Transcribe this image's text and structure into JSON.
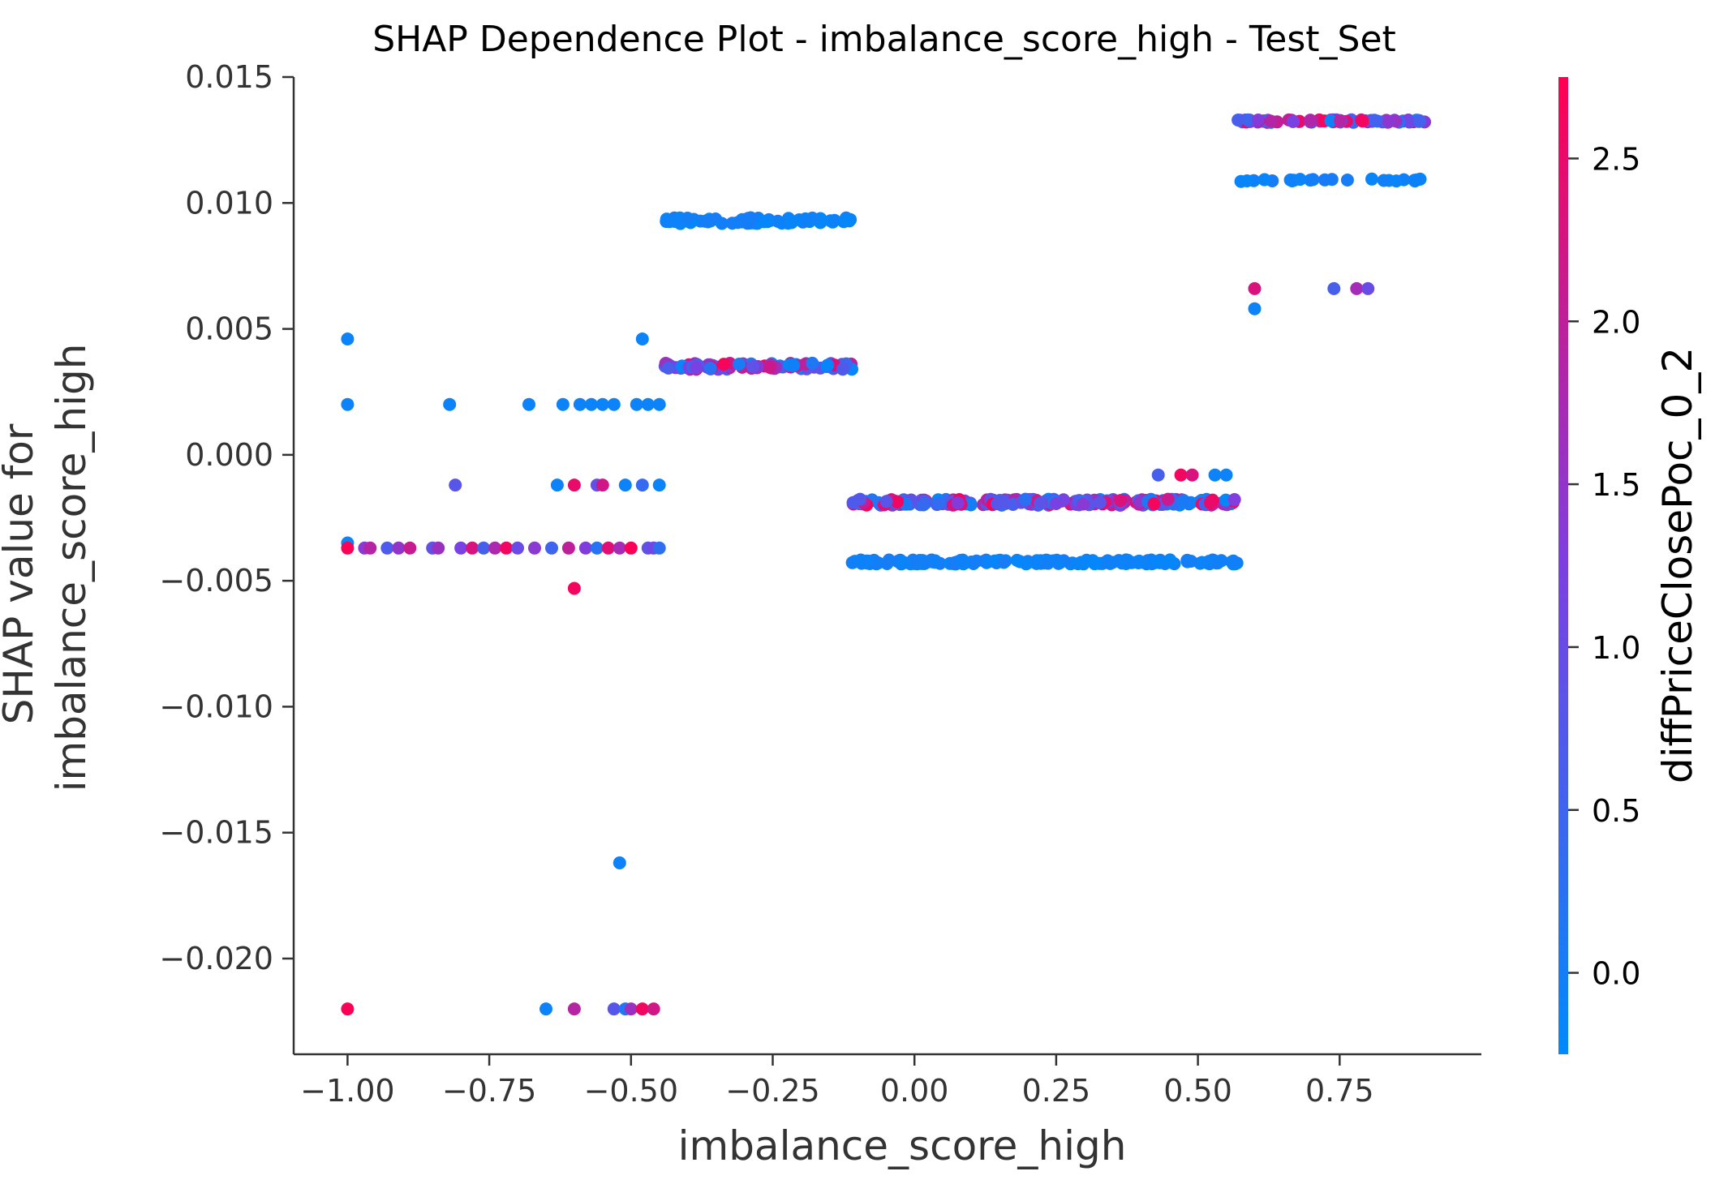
{
  "chart_data": {
    "type": "scatter",
    "title": "SHAP Dependence Plot - imbalance_score_high - Test_Set",
    "xlabel": "imbalance_score_high",
    "ylabel_lines": [
      "SHAP value for",
      "imbalance_score_high"
    ],
    "xlim": [
      -1.095,
      1.0
    ],
    "ylim": [
      -0.0238,
      0.015
    ],
    "x_ticks": [
      -1.0,
      -0.75,
      -0.5,
      -0.25,
      0.0,
      0.25,
      0.5,
      0.75
    ],
    "x_tick_labels": [
      "−1.00",
      "−0.75",
      "−0.50",
      "−0.25",
      "0.00",
      "0.25",
      "0.50",
      "0.75"
    ],
    "y_ticks": [
      0.015,
      0.01,
      0.005,
      0.0,
      -0.005,
      -0.01,
      -0.015,
      -0.02
    ],
    "y_tick_labels": [
      "0.015",
      "0.010",
      "0.005",
      "0.000",
      "−0.005",
      "−0.010",
      "−0.015",
      "−0.020"
    ],
    "grid": false,
    "colorbar": {
      "label": "diffPriceClosePoc_0_2",
      "range": [
        -0.25,
        2.75
      ],
      "ticks": [
        0.0,
        0.5,
        1.0,
        1.5,
        2.0,
        2.5
      ],
      "tick_labels": [
        "0.0",
        "0.5",
        "1.0",
        "1.5",
        "2.0",
        "2.5"
      ],
      "colormap": [
        "#008afb",
        "#7d3fe1",
        "#ff0052"
      ]
    },
    "point_color_fill": "#008afb",
    "clusters": [
      {
        "x_range": [
          -0.44,
          -0.11
        ],
        "y": 0.0093,
        "jitter": 0.00012,
        "n": 70,
        "c_range": [
          -0.2,
          0.05
        ]
      },
      {
        "x_range": [
          -0.44,
          -0.11
        ],
        "y": 0.00352,
        "jitter": 0.00012,
        "n": 110,
        "c_range": [
          -0.2,
          2.7
        ]
      },
      {
        "x_range": [
          -0.11,
          0.57
        ],
        "y": -0.00188,
        "jitter": 0.00012,
        "n": 260,
        "c_range": [
          -0.2,
          2.7
        ]
      },
      {
        "x_range": [
          -0.11,
          0.57
        ],
        "y": -0.00425,
        "jitter": 8e-05,
        "n": 190,
        "c_range": [
          -0.2,
          0.05
        ]
      },
      {
        "x_range": [
          0.57,
          0.9
        ],
        "y": 0.01325,
        "jitter": 5e-05,
        "n": 85,
        "c_range": [
          -0.2,
          2.7
        ]
      },
      {
        "x_range": [
          0.57,
          0.9
        ],
        "y": 0.0109,
        "jitter": 5e-05,
        "n": 24,
        "c_range": [
          -0.2,
          0.05
        ]
      }
    ],
    "points": [
      {
        "x": -1.0,
        "y": 0.0046,
        "c": -0.1
      },
      {
        "x": -1.0,
        "y": 0.002,
        "c": -0.1
      },
      {
        "x": -1.0,
        "y": -0.0035,
        "c": -0.1
      },
      {
        "x": -1.0,
        "y": -0.0037,
        "c": 2.7
      },
      {
        "x": -1.0,
        "y": -0.022,
        "c": 2.7
      },
      {
        "x": -0.97,
        "y": -0.0037,
        "c": 1.4
      },
      {
        "x": -0.96,
        "y": -0.0037,
        "c": 1.9
      },
      {
        "x": -0.93,
        "y": -0.0037,
        "c": 0.7
      },
      {
        "x": -0.91,
        "y": -0.0037,
        "c": 1.5
      },
      {
        "x": -0.89,
        "y": -0.0037,
        "c": 2.1
      },
      {
        "x": -0.85,
        "y": -0.0037,
        "c": 0.9
      },
      {
        "x": -0.84,
        "y": -0.0037,
        "c": 1.6
      },
      {
        "x": -0.82,
        "y": 0.002,
        "c": -0.1
      },
      {
        "x": -0.81,
        "y": -0.0012,
        "c": 0.8
      },
      {
        "x": -0.8,
        "y": -0.0037,
        "c": 1.2
      },
      {
        "x": -0.78,
        "y": -0.0037,
        "c": 2.3
      },
      {
        "x": -0.76,
        "y": -0.0037,
        "c": 0.6
      },
      {
        "x": -0.74,
        "y": -0.0037,
        "c": 1.8
      },
      {
        "x": -0.72,
        "y": -0.0037,
        "c": 2.6
      },
      {
        "x": -0.7,
        "y": -0.0037,
        "c": 1.0
      },
      {
        "x": -0.68,
        "y": 0.002,
        "c": -0.1
      },
      {
        "x": -0.67,
        "y": -0.0037,
        "c": 1.4
      },
      {
        "x": -0.65,
        "y": -0.022,
        "c": -0.1
      },
      {
        "x": -0.64,
        "y": -0.0037,
        "c": 0.5
      },
      {
        "x": -0.63,
        "y": -0.0012,
        "c": -0.1
      },
      {
        "x": -0.62,
        "y": 0.002,
        "c": -0.1
      },
      {
        "x": -0.61,
        "y": -0.0037,
        "c": 2.0
      },
      {
        "x": -0.6,
        "y": -0.0012,
        "c": 2.5
      },
      {
        "x": -0.6,
        "y": -0.0053,
        "c": 2.6
      },
      {
        "x": -0.6,
        "y": -0.022,
        "c": 1.9
      },
      {
        "x": -0.59,
        "y": 0.002,
        "c": -0.1
      },
      {
        "x": -0.58,
        "y": -0.0037,
        "c": 1.3
      },
      {
        "x": -0.57,
        "y": 0.002,
        "c": -0.1
      },
      {
        "x": -0.56,
        "y": -0.0012,
        "c": 0.9
      },
      {
        "x": -0.56,
        "y": -0.0037,
        "c": 0.2
      },
      {
        "x": -0.55,
        "y": 0.002,
        "c": -0.1
      },
      {
        "x": -0.55,
        "y": -0.0012,
        "c": 2.2
      },
      {
        "x": -0.54,
        "y": -0.0037,
        "c": 2.4
      },
      {
        "x": -0.53,
        "y": -0.022,
        "c": 0.8
      },
      {
        "x": -0.53,
        "y": 0.002,
        "c": -0.1
      },
      {
        "x": -0.52,
        "y": -0.0162,
        "c": -0.1
      },
      {
        "x": -0.52,
        "y": -0.0037,
        "c": 1.7
      },
      {
        "x": -0.51,
        "y": -0.0012,
        "c": -0.1
      },
      {
        "x": -0.51,
        "y": -0.022,
        "c": 0.1
      },
      {
        "x": -0.5,
        "y": -0.022,
        "c": 1.6
      },
      {
        "x": -0.5,
        "y": -0.0037,
        "c": 2.7
      },
      {
        "x": -0.49,
        "y": 0.002,
        "c": -0.1
      },
      {
        "x": -0.48,
        "y": 0.0046,
        "c": -0.1
      },
      {
        "x": -0.48,
        "y": -0.0012,
        "c": 0.4
      },
      {
        "x": -0.48,
        "y": -0.022,
        "c": 2.6
      },
      {
        "x": -0.47,
        "y": -0.0037,
        "c": 0.9
      },
      {
        "x": -0.47,
        "y": 0.002,
        "c": -0.1
      },
      {
        "x": -0.46,
        "y": -0.022,
        "c": 2.2
      },
      {
        "x": -0.46,
        "y": -0.0037,
        "c": 1.1
      },
      {
        "x": -0.45,
        "y": 0.002,
        "c": -0.1
      },
      {
        "x": -0.45,
        "y": -0.0037,
        "c": 0.3
      },
      {
        "x": -0.45,
        "y": -0.0012,
        "c": -0.1
      },
      {
        "x": 0.43,
        "y": -0.0008,
        "c": 0.6
      },
      {
        "x": 0.47,
        "y": -0.0008,
        "c": 2.6
      },
      {
        "x": 0.49,
        "y": -0.0008,
        "c": 2.3
      },
      {
        "x": 0.53,
        "y": -0.0008,
        "c": -0.1
      },
      {
        "x": 0.55,
        "y": -0.0008,
        "c": -0.1
      },
      {
        "x": 0.6,
        "y": 0.0066,
        "c": 2.3
      },
      {
        "x": 0.6,
        "y": 0.0058,
        "c": -0.1
      },
      {
        "x": 0.74,
        "y": 0.0066,
        "c": 0.6
      },
      {
        "x": 0.78,
        "y": 0.0066,
        "c": 1.7
      },
      {
        "x": 0.8,
        "y": 0.0066,
        "c": 1.0
      }
    ]
  }
}
